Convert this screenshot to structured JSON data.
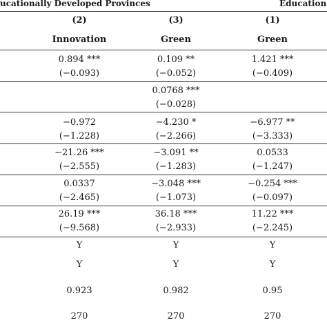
{
  "header": {
    "left_title": "ucationally Developed Provinces",
    "right_title": "Education"
  },
  "columns": [
    {
      "num": "(2)",
      "name": "Innovation"
    },
    {
      "num": "(3)",
      "name": "Green"
    },
    {
      "num": "(1)",
      "name": "Green"
    }
  ],
  "rows": [
    {
      "cells": [
        {
          "coef": "0.894 ***",
          "se": "(−0.093)"
        },
        {
          "coef": "0.109 **",
          "se": "(−0.052)"
        },
        {
          "coef": "1.421 ***",
          "se": "(−0.409)"
        }
      ]
    },
    {
      "cells": [
        {
          "coef": "",
          "se": ""
        },
        {
          "coef": "0.0768 ***",
          "se": "(−0.028)"
        },
        {
          "coef": "",
          "se": ""
        }
      ]
    },
    {
      "cells": [
        {
          "coef": "−0.972",
          "se": "(−1.228)"
        },
        {
          "coef": "−4.230 *",
          "se": "(−2.266)"
        },
        {
          "coef": "−6.977 **",
          "se": "(−3.333)"
        }
      ]
    },
    {
      "cells": [
        {
          "coef": "−21.26 ***",
          "se": "(−2.555)"
        },
        {
          "coef": "−3.091 **",
          "se": "(−1.283)"
        },
        {
          "coef": "0.0533",
          "se": "(−1.247)"
        }
      ]
    },
    {
      "cells": [
        {
          "coef": "0.0337",
          "se": "(−2.465)"
        },
        {
          "coef": "−3.048 ***",
          "se": "(−1.073)"
        },
        {
          "coef": "−0.254 ***",
          "se": "(−0.097)"
        }
      ]
    },
    {
      "cells": [
        {
          "coef": "26.19 ***",
          "se": "(−9.568)"
        },
        {
          "coef": "36.18 ***",
          "se": "(−2.933)"
        },
        {
          "coef": "11.22 ***",
          "se": "(−2.245)"
        }
      ]
    }
  ],
  "footer_rows": [
    {
      "cells": [
        "Y",
        "Y",
        "Y"
      ]
    },
    {
      "cells": [
        "Y",
        "Y",
        "Y"
      ]
    },
    {
      "cells": [
        "0.923",
        "0.982",
        "0.95"
      ]
    },
    {
      "cells": [
        "270",
        "270",
        "270"
      ]
    }
  ]
}
